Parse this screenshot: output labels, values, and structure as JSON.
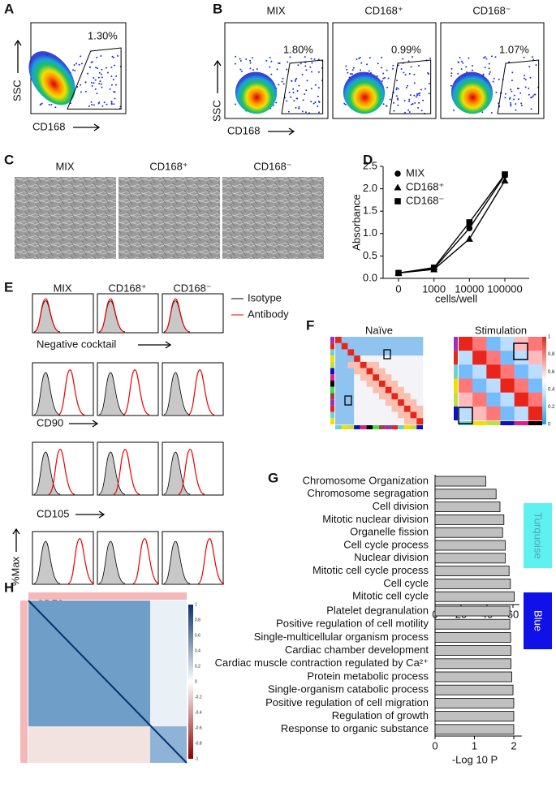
{
  "panel_labels": [
    "A",
    "B",
    "C",
    "D",
    "E",
    "F",
    "G",
    "H"
  ],
  "flow_a": {
    "gate": "1.30%",
    "y_label": "SSC",
    "x_label": "CD168"
  },
  "flow_b": {
    "titles": [
      "MIX",
      "CD168⁺",
      "CD168⁻"
    ],
    "gates": [
      "1.80%",
      "0.99%",
      "1.07%"
    ],
    "y_label": "SSC",
    "x_label": "CD168"
  },
  "culture": {
    "titles": [
      "MIX",
      "CD168⁺",
      "CD168⁻"
    ]
  },
  "histograms": {
    "titles": [
      "MIX",
      "CD168⁺",
      "CD168⁻"
    ],
    "legend": [
      "Isotype",
      "Antibody"
    ],
    "markers": [
      "Negative cocktail",
      "CD90",
      "CD105",
      "CD73"
    ],
    "y_label": "%Max"
  },
  "heatmaps_f": {
    "titles": [
      "Naïve",
      "Stimulation"
    ],
    "colorbar_ticks": [
      1,
      0.8,
      0.6,
      0.4,
      0.2,
      0
    ]
  },
  "heatmap_h": {
    "colorbar_ticks": [
      1,
      0.8,
      0.6,
      0.4,
      0.2,
      0,
      -0.2,
      -0.4,
      -0.6,
      -0.8,
      -1
    ]
  },
  "chart_data": [
    {
      "type": "line",
      "x_label": "cells/well",
      "y_label": "Absorbance",
      "categories": [
        "0",
        "1000",
        "10000",
        "100000"
      ],
      "ylim": [
        0,
        2.5
      ],
      "yticks": [
        {
          "value": 0,
          "label": "0.0"
        },
        0.5,
        {
          "value": 1,
          "label": "1.0"
        },
        1.5,
        {
          "value": 2,
          "label": "2.0"
        },
        2.5
      ],
      "series": [
        {
          "name": "MIX",
          "color": "#000000",
          "marker": "circle",
          "values": [
            0.12,
            0.22,
            1.12,
            2.3
          ]
        },
        {
          "name": "CD168⁺",
          "color": "#000000",
          "marker": "triangle",
          "values": [
            0.12,
            0.2,
            0.88,
            2.18
          ]
        },
        {
          "name": "CD168⁻",
          "color": "#000000",
          "marker": "square",
          "values": [
            0.12,
            0.24,
            1.25,
            2.32
          ]
        }
      ]
    },
    {
      "type": "bar",
      "orientation": "horizontal",
      "module": "Turquoise",
      "color": "#c0c0c0",
      "categories": [
        "Chromosome Organization",
        "Chromosome segragation",
        "Cell division",
        "Mitotic nuclear division",
        "Organelle fission",
        "Cell cycle process",
        "Nuclear division",
        "Mitotic cell cycle process",
        "Cell cycle",
        "Mitotic cell cycle"
      ],
      "values": [
        39,
        47,
        50,
        53,
        52,
        54,
        54,
        57,
        58,
        61
      ],
      "xlim": [
        0,
        65
      ],
      "xticks": [
        0,
        20,
        40,
        60
      ]
    },
    {
      "type": "bar",
      "orientation": "horizontal",
      "module": "Blue",
      "color": "#c0c0c0",
      "x_label": "-Log 10 P",
      "categories": [
        "Platelet degranulation",
        "Positive regulation of cell motility",
        "Single-multicellular organism process",
        "Cardiac chamber development",
        "Cardiac muscle contraction regulated by Ca²⁺",
        "Protein metabolic process",
        "Single-organism catabolic process",
        "Positive regulation of cell migration",
        "Regulation of growth",
        "Response to organic substance"
      ],
      "values": [
        1.9,
        1.9,
        1.92,
        1.93,
        1.93,
        1.95,
        1.98,
        2.0,
        2.0,
        2.0
      ],
      "xlim": [
        0,
        2.2
      ],
      "xticks": [
        0,
        1,
        2
      ]
    }
  ]
}
